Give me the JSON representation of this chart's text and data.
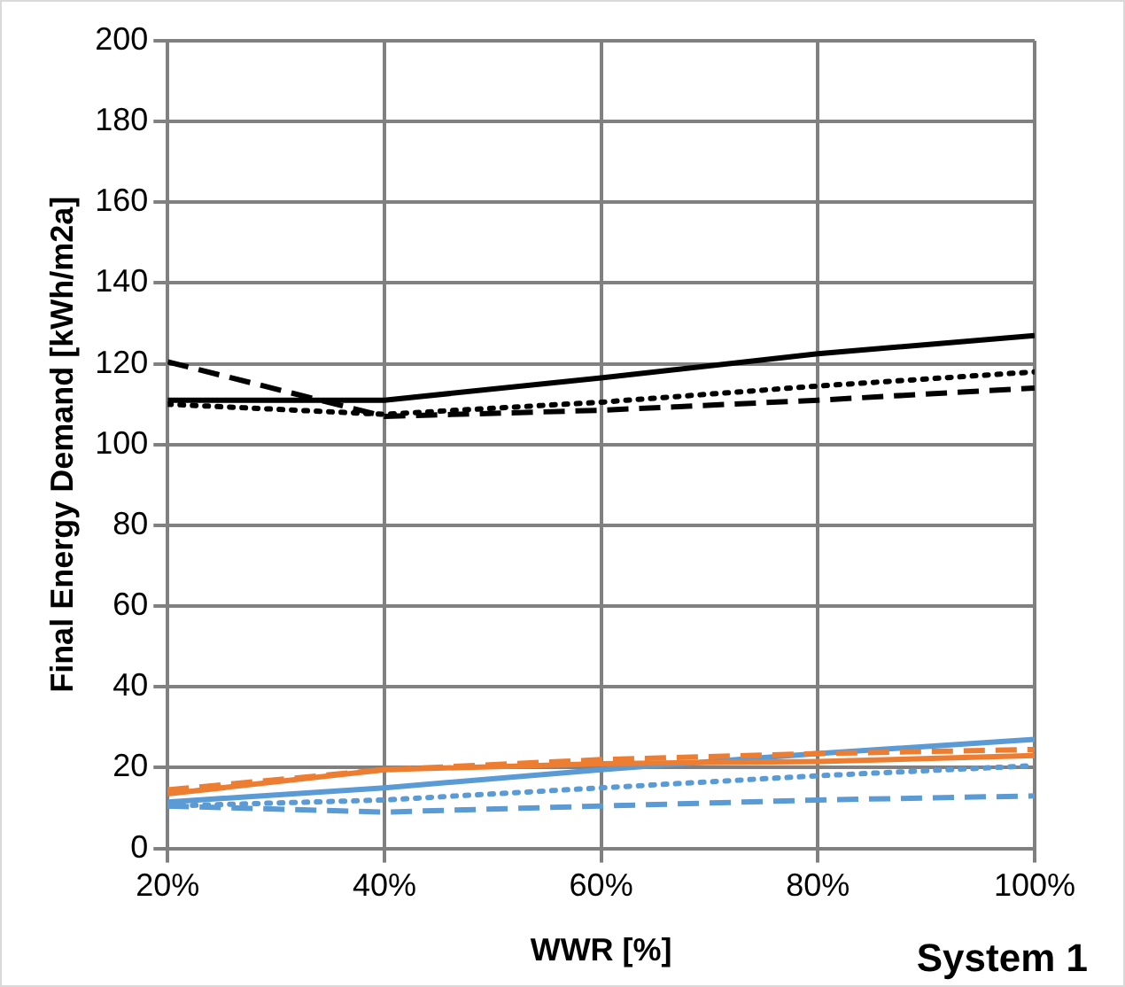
{
  "chart_data": {
    "type": "line",
    "xlabel": "WWR [%]",
    "ylabel": "Final Energy Demand [kWh/m2a]",
    "x": [
      20,
      40,
      60,
      80,
      100
    ],
    "xlim": [
      20,
      100
    ],
    "xticks": [
      {
        "value": 20,
        "label": "20%"
      },
      {
        "value": 40,
        "label": "40%"
      },
      {
        "value": 60,
        "label": "60%"
      },
      {
        "value": 80,
        "label": "80%"
      },
      {
        "value": 100,
        "label": "100%"
      }
    ],
    "ylim": [
      0,
      200
    ],
    "yticks": [
      0,
      20,
      40,
      60,
      80,
      100,
      120,
      140,
      160,
      180,
      200
    ],
    "grid": true,
    "legend": false,
    "marker": "none",
    "annotations": [
      "System 1"
    ],
    "series": [
      {
        "color": "#000000",
        "line_style": "solid",
        "values": [
          111,
          111,
          116.5,
          122.5,
          127
        ]
      },
      {
        "color": "#000000",
        "line_style": "dotted",
        "values": [
          110,
          107.5,
          110.5,
          114.5,
          118
        ]
      },
      {
        "color": "#000000",
        "line_style": "dashed",
        "values": [
          120.5,
          107,
          108.5,
          111,
          114
        ]
      },
      {
        "color": "#ed7d31",
        "line_style": "solid",
        "values": [
          13.5,
          19.5,
          21,
          21.5,
          23
        ]
      },
      {
        "color": "#ed7d31",
        "line_style": "dashed",
        "values": [
          14.5,
          19.5,
          22,
          23.5,
          24.5
        ]
      },
      {
        "color": "#5b9bd5",
        "line_style": "solid",
        "values": [
          11.5,
          15,
          19.5,
          23.5,
          27
        ]
      },
      {
        "color": "#5b9bd5",
        "line_style": "dotted",
        "values": [
          10.5,
          12,
          15,
          18,
          20.5
        ]
      },
      {
        "color": "#5b9bd5",
        "line_style": "dashed",
        "values": [
          10.5,
          9,
          10.5,
          12,
          13
        ]
      }
    ]
  }
}
